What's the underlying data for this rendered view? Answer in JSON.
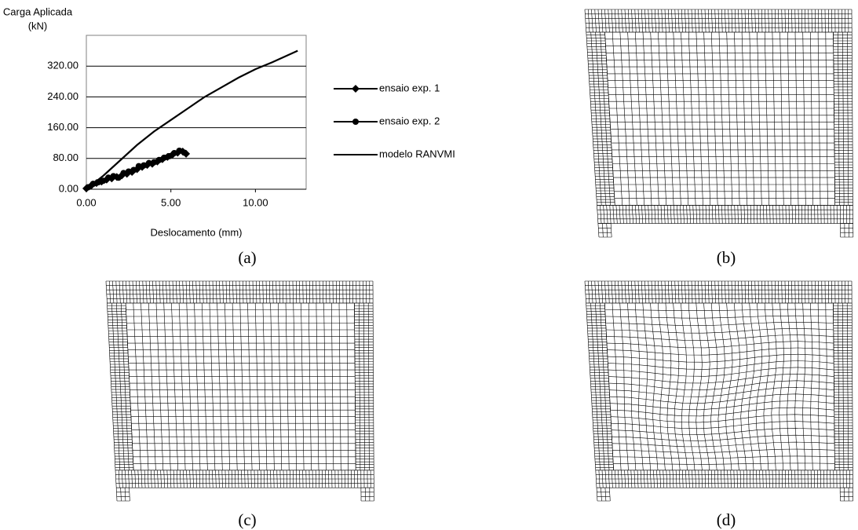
{
  "chart_data": {
    "type": "line",
    "y_label": [
      "Carga Aplicada",
      "(kN)"
    ],
    "x_label": "Deslocamento (mm)",
    "xlim": [
      0,
      13
    ],
    "xticks": [
      {
        "value": 0,
        "label": "0.00"
      },
      {
        "value": 5,
        "label": "5.00"
      },
      {
        "value": 10,
        "label": "10.00"
      }
    ],
    "ylim": [
      0,
      400
    ],
    "yticks": [
      {
        "value": 0,
        "label": "0.00"
      },
      {
        "value": 80,
        "label": "80.00"
      },
      {
        "value": 160,
        "label": "160.00"
      },
      {
        "value": 240,
        "label": "240.00"
      },
      {
        "value": 320,
        "label": "320.00"
      }
    ],
    "grid": true,
    "series": [
      {
        "name": "ensaio exp. 1",
        "color": "#000000",
        "marker": "diamond",
        "x": [
          0,
          0.3,
          0.6,
          0.9,
          1.2,
          1.5,
          1.8,
          2.1,
          2.4,
          2.7,
          3.0,
          3.3,
          3.6,
          3.9,
          4.2,
          4.5,
          4.8,
          5.1,
          5.4,
          5.7,
          5.9
        ],
        "values": [
          2,
          10,
          16,
          20,
          25,
          28,
          32,
          36,
          40,
          45,
          52,
          58,
          63,
          66,
          72,
          78,
          84,
          90,
          95,
          98,
          92
        ]
      },
      {
        "name": "ensaio exp. 2",
        "color": "#000000",
        "marker": "circle",
        "x": [
          0.1,
          0.4,
          0.7,
          1.0,
          1.3,
          1.6,
          1.9,
          2.2,
          2.5,
          2.8,
          3.1,
          3.4,
          3.7,
          4.0,
          4.3,
          4.6,
          4.9,
          5.2,
          5.5,
          5.8
        ],
        "values": [
          5,
          14,
          18,
          22,
          30,
          34,
          30,
          42,
          46,
          50,
          60,
          62,
          68,
          70,
          76,
          82,
          86,
          94,
          100,
          95
        ]
      },
      {
        "name": "modelo RANVMI",
        "color": "#000000",
        "marker": "none",
        "x": [
          0,
          1,
          2,
          3,
          4,
          5,
          6,
          7,
          8,
          9,
          10,
          11,
          12,
          12.5
        ],
        "values": [
          0,
          35,
          75,
          115,
          150,
          180,
          210,
          240,
          265,
          290,
          312,
          330,
          350,
          360
        ]
      }
    ]
  },
  "captions": [
    "(a)",
    "(b)",
    "(c)",
    "(d)"
  ]
}
